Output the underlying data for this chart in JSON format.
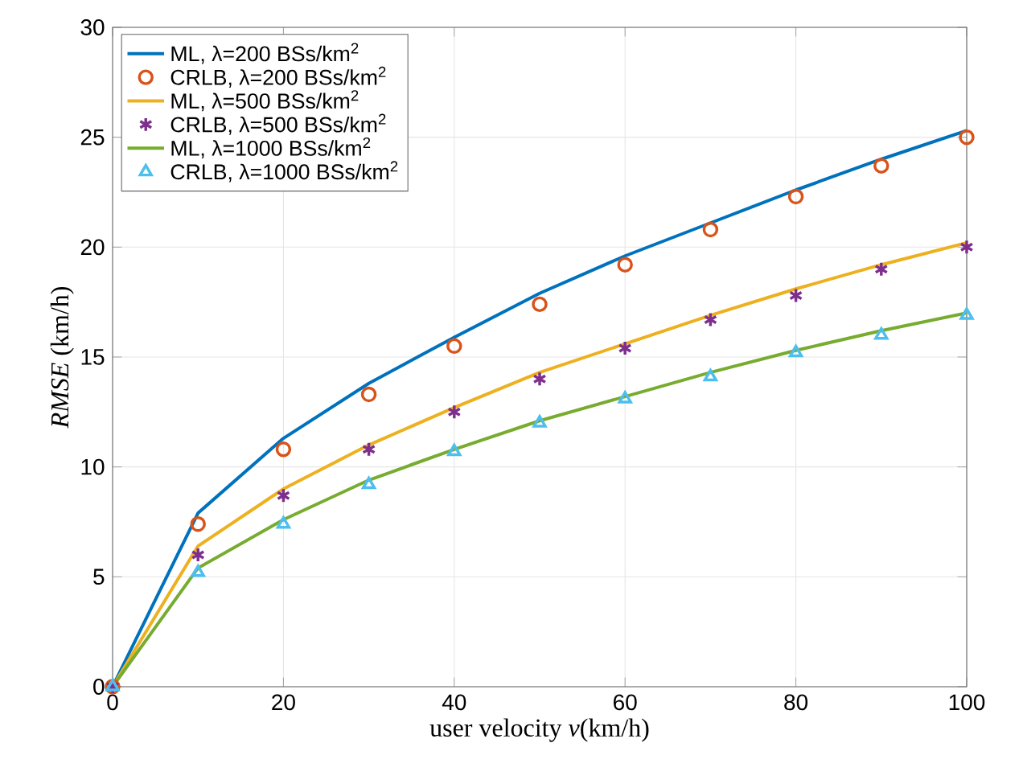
{
  "chart_data": {
    "type": "line",
    "xlabel": "user velocity *v*(km/h)",
    "ylabel": "*RMSE* (km/h)",
    "x": [
      0,
      10,
      20,
      30,
      40,
      50,
      60,
      70,
      80,
      90,
      100
    ],
    "xlim": [
      0,
      100
    ],
    "xticks": [
      0,
      20,
      40,
      60,
      80,
      100
    ],
    "ylim": [
      0,
      30
    ],
    "yticks": [
      0,
      5,
      10,
      15,
      20,
      25,
      30
    ],
    "grid": true,
    "legend": "top left",
    "series": [
      {
        "name": "ML, λ=200 BSs/km$^{2}$",
        "color": "#0072bd",
        "values": [
          0,
          7.9,
          11.3,
          13.8,
          15.9,
          17.9,
          19.6,
          21.1,
          22.6,
          24.0,
          25.3
        ]
      },
      {
        "name": "CRLB, λ=200 BSs/km$^{2}$",
        "type": "scatter",
        "marker": "circle",
        "color": "#d95319",
        "values": [
          0,
          7.4,
          10.8,
          13.3,
          15.5,
          17.4,
          19.2,
          20.8,
          22.3,
          23.7,
          25.0
        ]
      },
      {
        "name": "ML, λ=500 BSs/km$^{2}$",
        "color": "#edb120",
        "values": [
          0,
          6.4,
          9.0,
          11.0,
          12.7,
          14.3,
          15.6,
          16.9,
          18.1,
          19.2,
          20.2
        ]
      },
      {
        "name": "CRLB, λ=500 BSs/km$^{2}$",
        "type": "scatter",
        "marker": "cross",
        "color": "#7e2f8e",
        "values": [
          0,
          6.0,
          8.7,
          10.8,
          12.5,
          14.0,
          15.4,
          16.7,
          17.8,
          19.0,
          20.0
        ]
      },
      {
        "name": "ML, λ=1000 BSs/km$^{2}$",
        "color": "#77ac30",
        "values": [
          0,
          5.4,
          7.6,
          9.4,
          10.8,
          12.1,
          13.2,
          14.3,
          15.3,
          16.2,
          17.0
        ]
      },
      {
        "name": "CRLB, λ=1000 BSs/km$^{2}$",
        "type": "scatter",
        "marker": "triangle",
        "color": "#4dbeee",
        "values": [
          0,
          5.2,
          7.4,
          9.2,
          10.7,
          12.0,
          13.1,
          14.1,
          15.2,
          16.0,
          16.9
        ]
      }
    ]
  }
}
